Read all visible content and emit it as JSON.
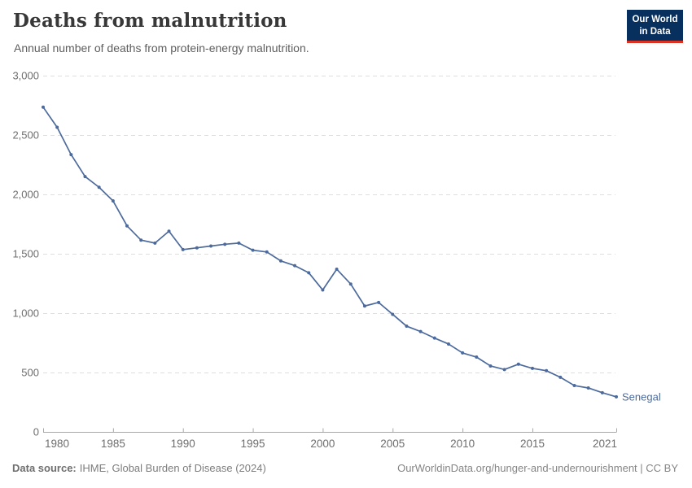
{
  "header": {
    "title": "Deaths from malnutrition",
    "subtitle": "Annual number of deaths from protein-energy malnutrition.",
    "logo": {
      "line1": "Our World",
      "line2": "in Data"
    }
  },
  "chart_data": {
    "type": "line",
    "title": "Deaths from malnutrition",
    "subtitle": "Annual number of deaths from protein-energy malnutrition.",
    "entity": "Senegal",
    "xlim": [
      1980,
      2021
    ],
    "ylim": [
      0,
      3000
    ],
    "grid": "horizontal-dashed",
    "legend_position": "end-of-line-label",
    "x_ticks": [
      1980,
      1985,
      1990,
      1995,
      2000,
      2005,
      2010,
      2015,
      2021
    ],
    "y_ticks": [
      0,
      500,
      1000,
      1500,
      2000,
      2500,
      3000
    ],
    "y_tick_labels": [
      "0",
      "500",
      "1,000",
      "1,500",
      "2,000",
      "2,500",
      "3,000"
    ],
    "series": [
      {
        "name": "Senegal",
        "color": "#4c6a9c",
        "x": [
          1980,
          1981,
          1982,
          1983,
          1984,
          1985,
          1986,
          1987,
          1988,
          1989,
          1990,
          1991,
          1992,
          1993,
          1994,
          1995,
          1996,
          1997,
          1998,
          1999,
          2000,
          2001,
          2002,
          2003,
          2004,
          2005,
          2006,
          2007,
          2008,
          2009,
          2010,
          2011,
          2012,
          2013,
          2014,
          2015,
          2016,
          2017,
          2018,
          2019,
          2020,
          2021
        ],
        "values": [
          2735,
          2565,
          2335,
          2150,
          2060,
          1945,
          1735,
          1615,
          1590,
          1690,
          1535,
          1550,
          1565,
          1580,
          1590,
          1530,
          1515,
          1440,
          1400,
          1340,
          1195,
          1370,
          1245,
          1060,
          1090,
          990,
          890,
          845,
          790,
          740,
          665,
          630,
          555,
          525,
          570,
          535,
          515,
          460,
          390,
          370,
          330,
          295
        ]
      }
    ]
  },
  "footer": {
    "source_label": "Data source:",
    "source_text": "IHME, Global Burden of Disease (2024)",
    "link": "OurWorldinData.org/hunger-and-undernourishment | CC BY"
  },
  "colors": {
    "line": "#4c6a9c",
    "grid": "#dedede",
    "axis": "#a8a8a8",
    "tick_label": "#6e6e6e",
    "title": "#383838",
    "subtitle": "#5e5e5e",
    "logo_bg": "#07305f",
    "logo_bar": "#dc3224"
  }
}
